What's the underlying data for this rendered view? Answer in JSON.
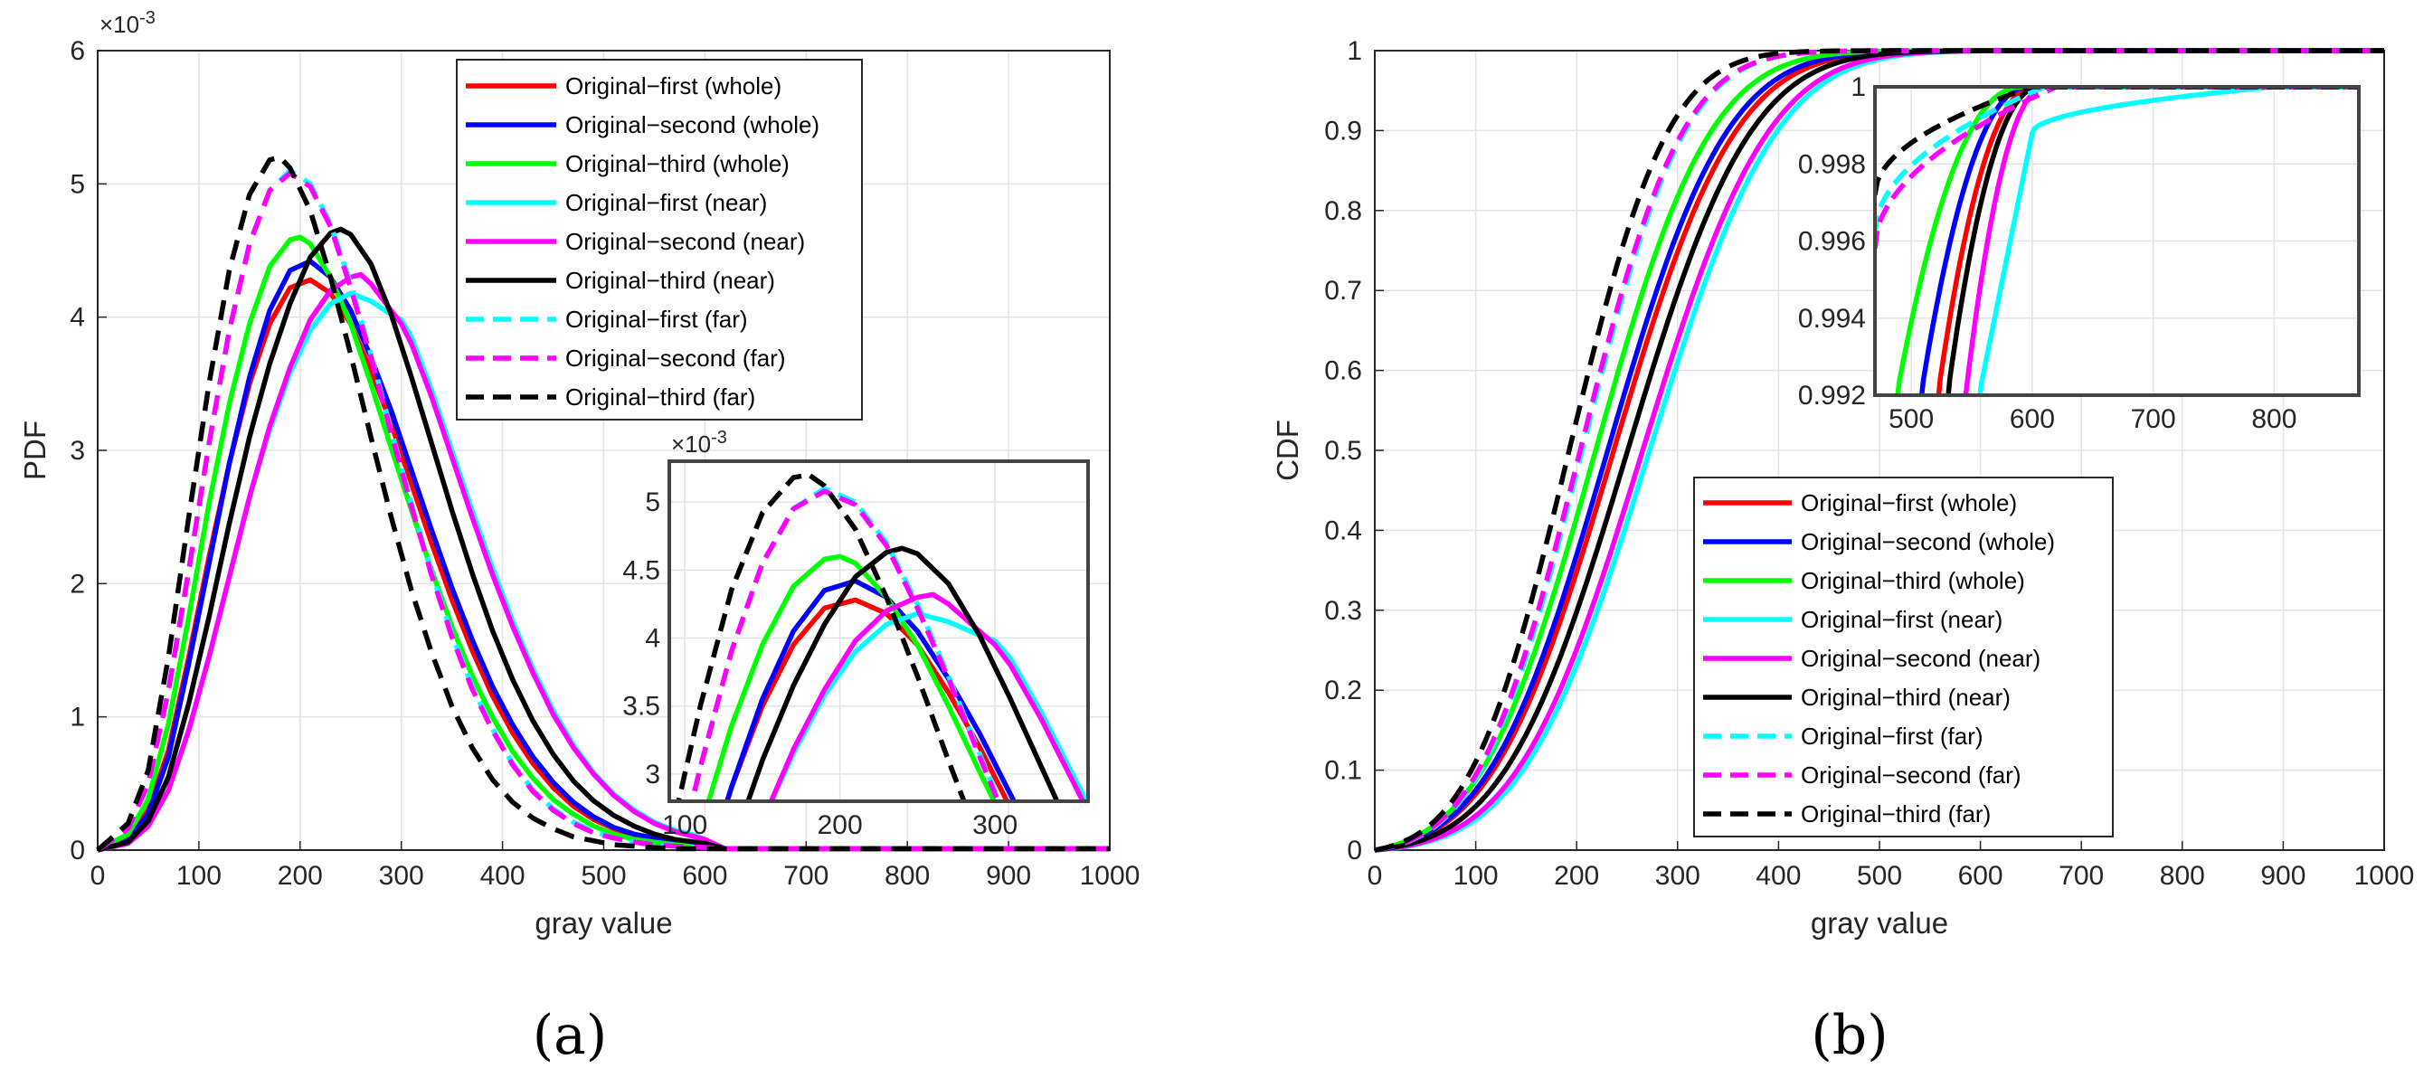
{
  "colors": {
    "red": "#ff0000",
    "blue": "#0000ff",
    "green": "#00ff00",
    "cyan": "#00ffff",
    "magenta": "#ff00ff",
    "black": "#000000",
    "grid": "#e3e3e3",
    "axis": "#262626"
  },
  "chart_data": [
    {
      "panel": "a",
      "panel_label": "(a)",
      "type": "line",
      "xlabel": "gray value",
      "ylabel": "PDF",
      "xlim": [
        0,
        1000
      ],
      "ylim": [
        0,
        6
      ],
      "exponent_label": "×10",
      "exponent_power": "-3",
      "xticks": [
        "0",
        "100",
        "200",
        "300",
        "400",
        "500",
        "600",
        "700",
        "800",
        "900",
        "1000"
      ],
      "yticks": [
        "0",
        "1",
        "2",
        "3",
        "4",
        "5",
        "6"
      ],
      "grid": true,
      "legend_position": "top-right",
      "series": [
        {
          "name": "Original−first (whole)",
          "color": "#ff0000",
          "dash": "solid",
          "x": [
            0,
            30,
            50,
            70,
            90,
            110,
            130,
            150,
            170,
            190,
            210,
            230,
            250,
            270,
            290,
            310,
            330,
            350,
            370,
            390,
            410,
            430,
            450,
            470,
            490,
            510,
            530,
            550,
            570,
            600,
            620,
            1000
          ],
          "y": [
            0,
            0.1,
            0.3,
            0.75,
            1.45,
            2.2,
            2.9,
            3.5,
            3.95,
            4.22,
            4.28,
            4.18,
            3.95,
            3.6,
            3.2,
            2.75,
            2.3,
            1.88,
            1.5,
            1.16,
            0.88,
            0.65,
            0.47,
            0.33,
            0.23,
            0.16,
            0.11,
            0.08,
            0.06,
            0.04,
            0.01,
            0.01
          ]
        },
        {
          "name": "Original−second (whole)",
          "color": "#0000ff",
          "dash": "solid",
          "x": [
            0,
            30,
            50,
            70,
            90,
            110,
            130,
            150,
            170,
            190,
            210,
            230,
            250,
            270,
            290,
            310,
            330,
            350,
            370,
            390,
            410,
            430,
            450,
            470,
            490,
            510,
            530,
            550,
            570,
            600,
            620,
            1000
          ],
          "y": [
            0,
            0.08,
            0.27,
            0.7,
            1.4,
            2.15,
            2.9,
            3.55,
            4.05,
            4.35,
            4.42,
            4.3,
            4.05,
            3.7,
            3.3,
            2.85,
            2.4,
            1.97,
            1.58,
            1.23,
            0.94,
            0.7,
            0.51,
            0.36,
            0.25,
            0.17,
            0.12,
            0.09,
            0.06,
            0.04,
            0.01,
            0.01
          ]
        },
        {
          "name": "Original−third (whole)",
          "color": "#00ff00",
          "dash": "solid",
          "x": [
            0,
            30,
            50,
            70,
            90,
            110,
            130,
            150,
            170,
            190,
            200,
            210,
            230,
            250,
            270,
            290,
            310,
            330,
            350,
            370,
            390,
            410,
            430,
            450,
            470,
            490,
            510,
            530,
            550,
            570,
            600,
            620,
            1000
          ],
          "y": [
            0,
            0.12,
            0.38,
            0.95,
            1.75,
            2.6,
            3.35,
            3.95,
            4.38,
            4.58,
            4.6,
            4.55,
            4.3,
            3.95,
            3.5,
            3.02,
            2.55,
            2.1,
            1.68,
            1.31,
            1.0,
            0.74,
            0.54,
            0.38,
            0.27,
            0.18,
            0.12,
            0.08,
            0.06,
            0.04,
            0.03,
            0.01,
            0.01
          ]
        },
        {
          "name": "Original−first (near)",
          "color": "#00ffff",
          "dash": "solid",
          "x": [
            0,
            30,
            50,
            70,
            90,
            110,
            130,
            150,
            170,
            190,
            210,
            230,
            250,
            270,
            290,
            300,
            310,
            330,
            350,
            370,
            390,
            410,
            430,
            450,
            470,
            490,
            510,
            530,
            550,
            570,
            590,
            600,
            620,
            1000
          ],
          "y": [
            0,
            0.05,
            0.18,
            0.45,
            0.9,
            1.45,
            2.05,
            2.65,
            3.15,
            3.58,
            3.9,
            4.1,
            4.18,
            4.12,
            4.02,
            3.98,
            3.85,
            3.45,
            3.0,
            2.55,
            2.12,
            1.72,
            1.36,
            1.05,
            0.79,
            0.58,
            0.42,
            0.3,
            0.21,
            0.15,
            0.11,
            0.08,
            0.01,
            0.01
          ]
        },
        {
          "name": "Original−second (near)",
          "color": "#ff00ff",
          "dash": "solid",
          "x": [
            0,
            30,
            50,
            70,
            90,
            110,
            130,
            150,
            170,
            190,
            210,
            230,
            250,
            260,
            270,
            290,
            300,
            310,
            330,
            350,
            370,
            390,
            410,
            430,
            450,
            470,
            490,
            510,
            530,
            550,
            570,
            590,
            600,
            620,
            1000
          ],
          "y": [
            0,
            0.05,
            0.18,
            0.45,
            0.9,
            1.45,
            2.05,
            2.65,
            3.18,
            3.62,
            3.98,
            4.2,
            4.3,
            4.32,
            4.25,
            4.05,
            3.95,
            3.8,
            3.4,
            2.95,
            2.5,
            2.07,
            1.68,
            1.33,
            1.02,
            0.77,
            0.57,
            0.41,
            0.29,
            0.2,
            0.14,
            0.1,
            0.08,
            0.01,
            0.01
          ]
        },
        {
          "name": "Original−third (near)",
          "color": "#000000",
          "dash": "solid",
          "x": [
            0,
            30,
            50,
            70,
            90,
            110,
            130,
            150,
            170,
            190,
            210,
            230,
            240,
            250,
            270,
            290,
            310,
            330,
            350,
            370,
            390,
            410,
            430,
            450,
            470,
            490,
            510,
            530,
            550,
            570,
            600,
            620,
            1000
          ],
          "y": [
            0,
            0.06,
            0.22,
            0.55,
            1.1,
            1.75,
            2.45,
            3.1,
            3.65,
            4.1,
            4.45,
            4.63,
            4.66,
            4.62,
            4.4,
            4.02,
            3.55,
            3.05,
            2.55,
            2.08,
            1.65,
            1.28,
            0.97,
            0.72,
            0.52,
            0.37,
            0.26,
            0.18,
            0.12,
            0.08,
            0.05,
            0.01,
            0.01
          ]
        },
        {
          "name": "Original−first (far)",
          "color": "#00ffff",
          "dash": "dashed",
          "x": [
            0,
            30,
            50,
            70,
            90,
            110,
            130,
            150,
            170,
            190,
            210,
            230,
            250,
            270,
            290,
            310,
            330,
            350,
            370,
            390,
            410,
            430,
            450,
            470,
            490,
            510,
            530,
            550,
            570,
            600,
            620,
            1000
          ],
          "y": [
            0,
            0.16,
            0.5,
            1.2,
            2.1,
            3.05,
            3.9,
            4.55,
            4.95,
            5.1,
            5.0,
            4.7,
            4.25,
            3.72,
            3.15,
            2.6,
            2.08,
            1.62,
            1.23,
            0.91,
            0.65,
            0.45,
            0.31,
            0.21,
            0.14,
            0.09,
            0.06,
            0.04,
            0.03,
            0.02,
            0.01,
            0.01
          ]
        },
        {
          "name": "Original−second (far)",
          "color": "#ff00ff",
          "dash": "dashed",
          "x": [
            0,
            30,
            50,
            70,
            90,
            110,
            130,
            150,
            170,
            190,
            210,
            230,
            250,
            270,
            290,
            310,
            330,
            350,
            370,
            390,
            410,
            430,
            450,
            470,
            490,
            510,
            530,
            550,
            570,
            600,
            620,
            1000
          ],
          "y": [
            0,
            0.16,
            0.5,
            1.2,
            2.1,
            3.05,
            3.9,
            4.55,
            4.95,
            5.08,
            4.98,
            4.68,
            4.22,
            3.7,
            3.13,
            2.58,
            2.06,
            1.6,
            1.21,
            0.9,
            0.64,
            0.44,
            0.3,
            0.2,
            0.13,
            0.09,
            0.06,
            0.04,
            0.03,
            0.02,
            0.01,
            0.01
          ]
        },
        {
          "name": "Original−third (far)",
          "color": "#000000",
          "dash": "dashed",
          "x": [
            0,
            30,
            50,
            70,
            90,
            110,
            130,
            150,
            170,
            180,
            190,
            210,
            230,
            250,
            270,
            290,
            310,
            330,
            350,
            370,
            390,
            410,
            430,
            450,
            470,
            490,
            510,
            530,
            550,
            570,
            600,
            620,
            1000
          ],
          "y": [
            0,
            0.2,
            0.6,
            1.45,
            2.5,
            3.5,
            4.35,
            4.92,
            5.18,
            5.2,
            5.12,
            4.8,
            4.3,
            3.72,
            3.1,
            2.5,
            1.95,
            1.48,
            1.08,
            0.77,
            0.53,
            0.36,
            0.24,
            0.16,
            0.1,
            0.07,
            0.04,
            0.03,
            0.02,
            0.01,
            0.01,
            0.01,
            0.01
          ]
        }
      ],
      "inset": {
        "xlim": [
          90,
          360
        ],
        "ylim": [
          2.8,
          5.3
        ],
        "xticks": [
          "100",
          "200",
          "300"
        ],
        "yticks": [
          "3",
          "3.5",
          "4",
          "4.5",
          "5"
        ],
        "exponent_label": "×10",
        "exponent_power": "-3"
      }
    },
    {
      "panel": "b",
      "panel_label": "(b)",
      "type": "line",
      "xlabel": "gray value",
      "ylabel": "CDF",
      "xlim": [
        0,
        1000
      ],
      "ylim": [
        0,
        1
      ],
      "xticks": [
        "0",
        "100",
        "200",
        "300",
        "400",
        "500",
        "600",
        "700",
        "800",
        "900",
        "1000"
      ],
      "yticks": [
        "0",
        "0.1",
        "0.2",
        "0.3",
        "0.4",
        "0.5",
        "0.6",
        "0.7",
        "0.8",
        "0.9",
        "1"
      ],
      "grid": true,
      "legend_position": "bottom-right",
      "series": [
        {
          "name": "Original−first (whole)",
          "color": "#ff0000",
          "dash": "solid",
          "mu": 236,
          "sigma": 95,
          "knee": 522,
          "cap": 603
        },
        {
          "name": "Original−second (whole)",
          "color": "#0000ff",
          "dash": "solid",
          "mu": 230,
          "sigma": 93,
          "knee": 508,
          "cap": 598
        },
        {
          "name": "Original−third (whole)",
          "color": "#00ff00",
          "dash": "solid",
          "mu": 218,
          "sigma": 90,
          "knee": 488,
          "cap": 592
        },
        {
          "name": "Original−first (near)",
          "color": "#00ffff",
          "dash": "solid",
          "mu": 272,
          "sigma": 99,
          "knee": 556,
          "cap": 600,
          "tail_end": 800
        },
        {
          "name": "Original−second (near)",
          "color": "#ff00ff",
          "dash": "solid",
          "mu": 265,
          "sigma": 98,
          "knee": 545,
          "cap": 612
        },
        {
          "name": "Original−third (near)",
          "color": "#000000",
          "dash": "solid",
          "mu": 250,
          "sigma": 96,
          "knee": 530,
          "cap": 607
        },
        {
          "name": "Original−first (far)",
          "color": "#00ffff",
          "dash": "dashed",
          "mu": 205,
          "sigma": 80,
          "start": 0.9962,
          "cap": 610
        },
        {
          "name": "Original−second (far)",
          "color": "#ff00ff",
          "dash": "dashed",
          "mu": 203,
          "sigma": 80,
          "start": 0.9958,
          "cap": 620
        },
        {
          "name": "Original−third (far)",
          "color": "#000000",
          "dash": "dashed",
          "mu": 192,
          "sigma": 77,
          "start": 0.9972,
          "cap": 600
        }
      ],
      "inset": {
        "xlim": [
          470,
          870
        ],
        "ylim": [
          0.992,
          1
        ],
        "xticks": [
          "500",
          "600",
          "700",
          "800"
        ],
        "yticks": [
          "0.992",
          "0.994",
          "0.996",
          "0.998",
          "1"
        ]
      }
    }
  ]
}
